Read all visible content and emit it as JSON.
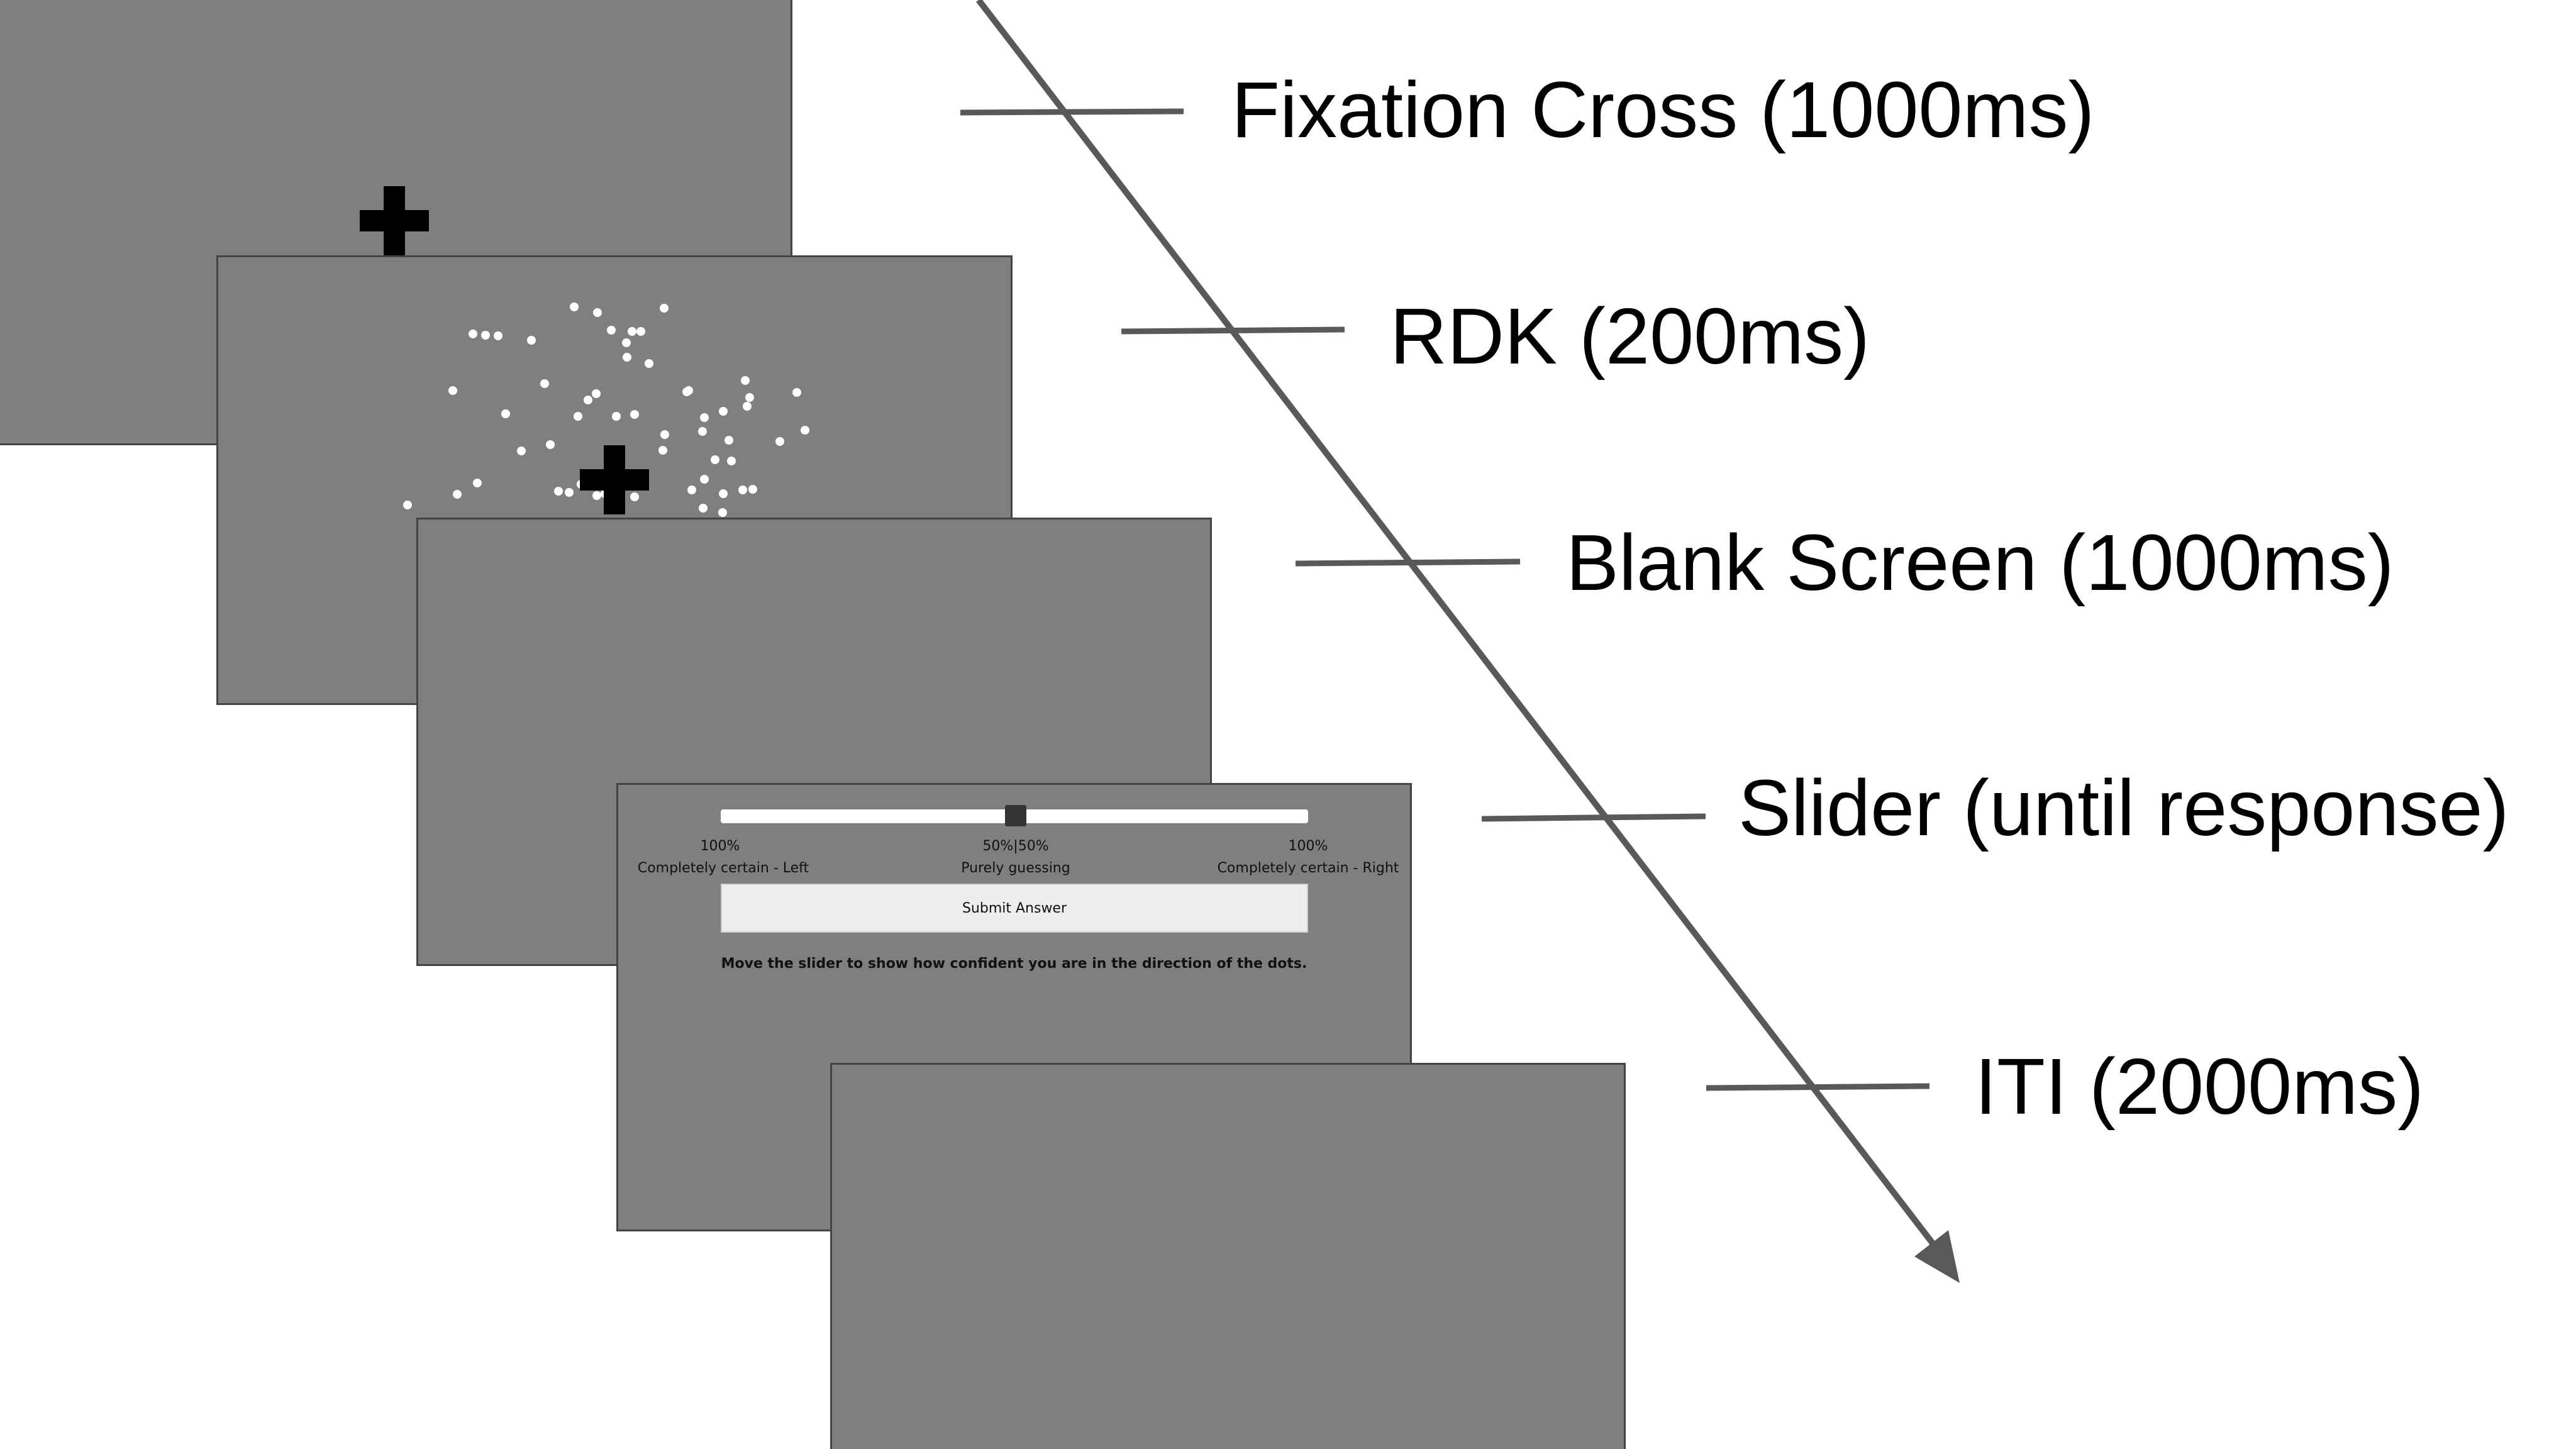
{
  "diagram": {
    "steps": [
      {
        "label": "Fixation Cross (1000ms)"
      },
      {
        "label": "RDK (200ms)"
      },
      {
        "label": "Blank Screen (1000ms)"
      },
      {
        "label": "Slider (until response)"
      },
      {
        "label": "ITI (2000ms)"
      }
    ],
    "slider_screen": {
      "left_percent": "100%",
      "center_percent": "50%|50%",
      "right_percent": "100%",
      "left_label": "Completely certain - Left",
      "center_label": "Purely guessing",
      "right_label": "Completely certain - Right",
      "submit_label": "Submit Answer",
      "instruction": "Move the slider to show how confident you are in the direction of the dots.",
      "slider_value": 0.5
    },
    "colors": {
      "screen_fill": "#7f7f7f",
      "screen_border": "#444444",
      "arrow": "#595959",
      "dots": "#ffffff",
      "cross": "#000000"
    },
    "icons": [
      "fixation-cross-icon",
      "time-arrow-icon"
    ]
  }
}
